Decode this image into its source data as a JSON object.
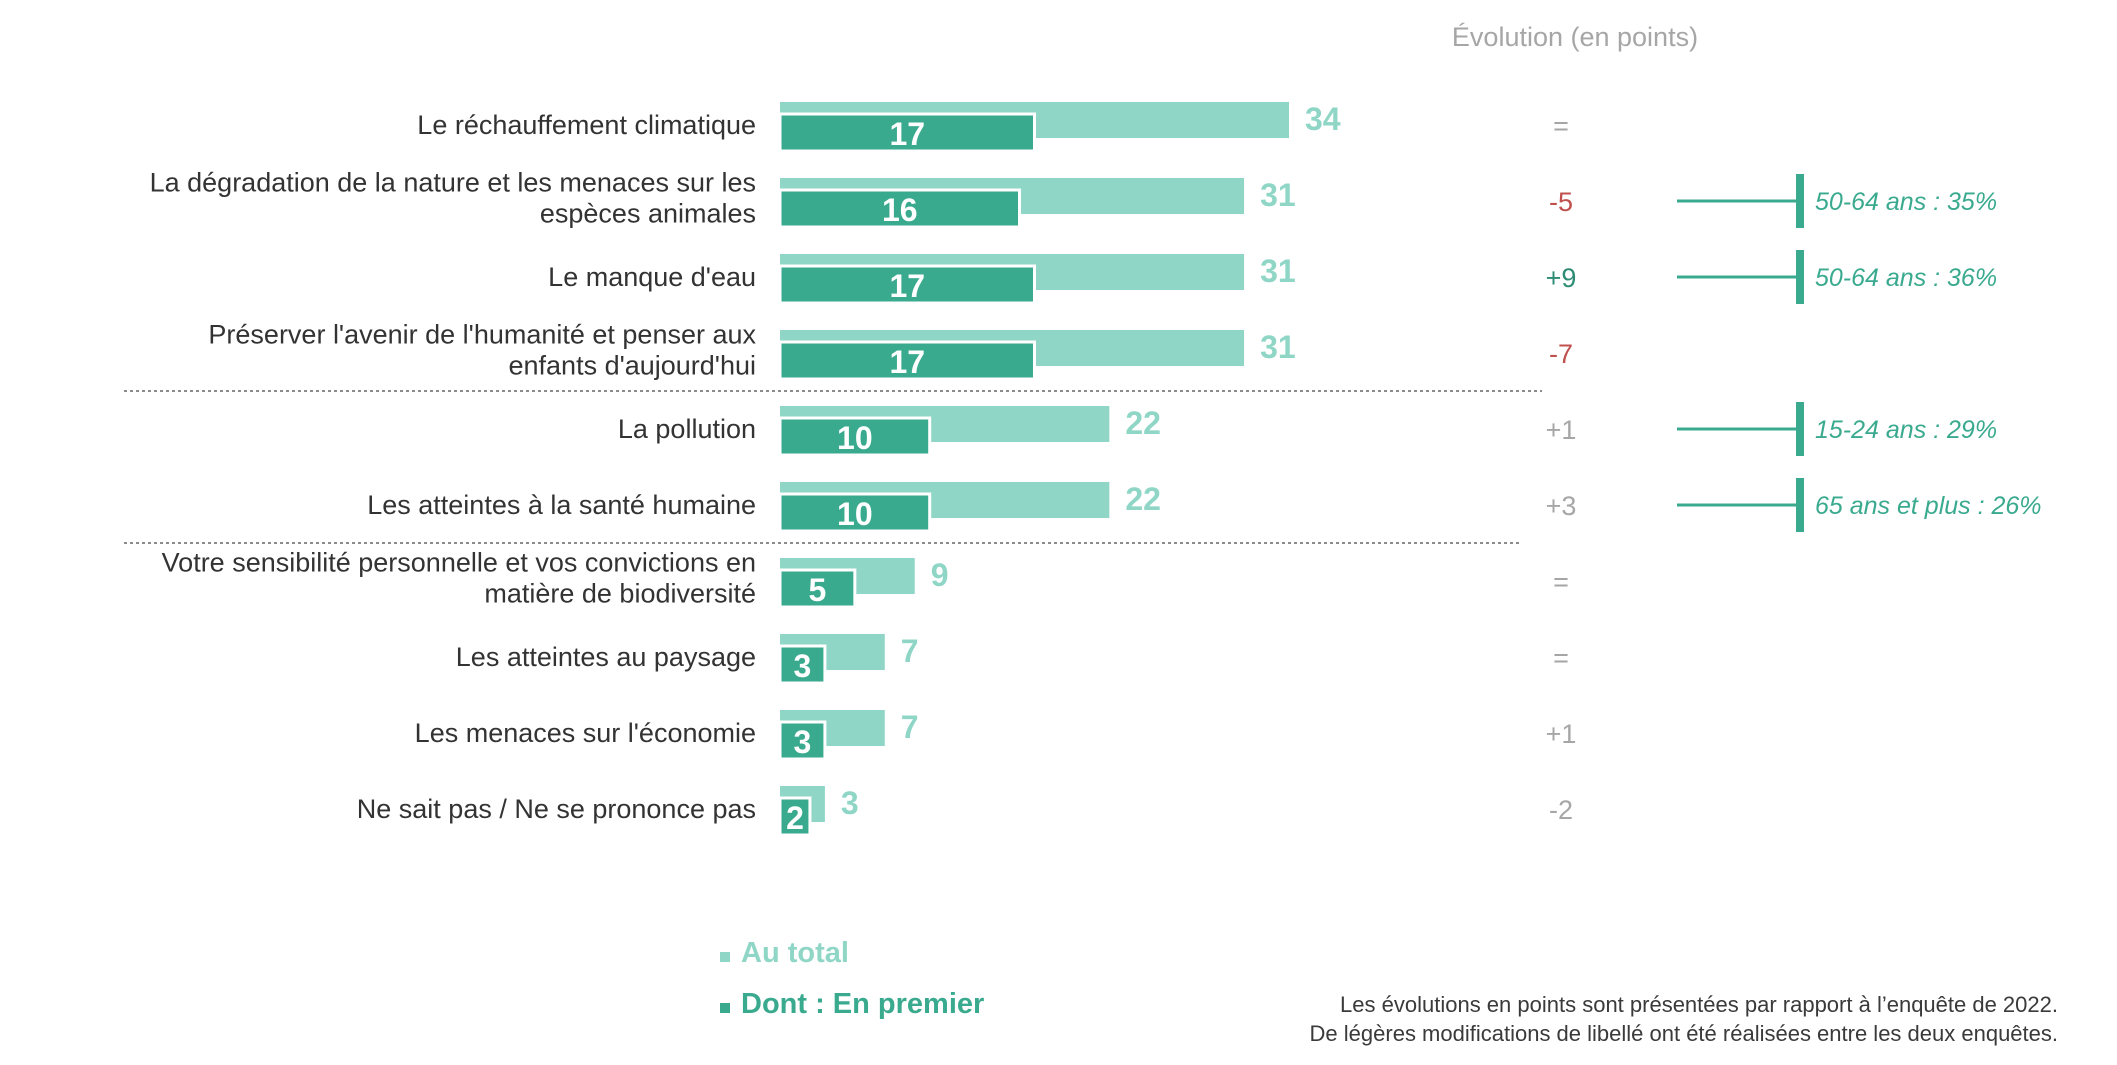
{
  "chart_data": {
    "type": "bar",
    "title": "",
    "categories": [
      [
        "Le réchauffement climatique"
      ],
      [
        "La dégradation de la nature et les menaces sur les",
        "espèces animales"
      ],
      [
        "Le manque d'eau"
      ],
      [
        "Préserver l'avenir de l'humanité et penser aux",
        "enfants d'aujourd'hui"
      ],
      [
        "La pollution"
      ],
      [
        "Les atteintes à la santé humaine"
      ],
      [
        "Votre sensibilité personnelle et vos convictions en",
        "matière de biodiversité"
      ],
      [
        "Les atteintes au paysage"
      ],
      [
        "Les menaces sur l'économie"
      ],
      [
        "Ne sait pas / Ne se prononce pas"
      ]
    ],
    "series": [
      {
        "name": "Au total",
        "color": "#8fd6c6",
        "values": [
          34,
          31,
          31,
          31,
          22,
          22,
          9,
          7,
          7,
          3
        ]
      },
      {
        "name": "Dont : En premier",
        "color": "#3aaa8f",
        "values": [
          17,
          16,
          17,
          17,
          10,
          10,
          5,
          3,
          3,
          2
        ]
      }
    ],
    "group_separators_after": [
      3,
      5
    ],
    "evolution_header": "Évolution (en points)",
    "evolution": [
      {
        "text": "=",
        "color": "#a6a6a6"
      },
      {
        "text": "-5",
        "color": "#c0504d"
      },
      {
        "text": "+9",
        "color": "#2e8b74"
      },
      {
        "text": "-7",
        "color": "#c0504d"
      },
      {
        "text": "+1",
        "color": "#a6a6a6"
      },
      {
        "text": "+3",
        "color": "#a6a6a6"
      },
      {
        "text": "=",
        "color": "#a6a6a6"
      },
      {
        "text": "=",
        "color": "#a6a6a6"
      },
      {
        "text": "+1",
        "color": "#a6a6a6"
      },
      {
        "text": "-2",
        "color": "#a6a6a6"
      }
    ],
    "highlights": [
      null,
      "50-64 ans : 35%",
      "50-64 ans : 36%",
      null,
      "15-24 ans : 29%",
      "65 ans et plus : 26%",
      null,
      null,
      null,
      null
    ]
  },
  "legend": [
    {
      "label": "Au total",
      "color": "#8fd6c6"
    },
    {
      "label": "Dont : En premier",
      "color": "#3aaa8f"
    }
  ],
  "footnote": [
    "Les évolutions en points sont présentées par rapport à l’enquête de 2022.",
    "De légères modifications de libellé ont été réalisées entre les deux enquêtes."
  ]
}
